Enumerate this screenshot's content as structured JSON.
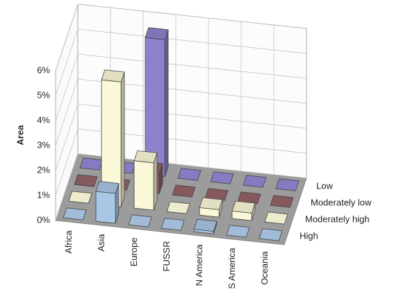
{
  "chart_data": {
    "type": "bar3d",
    "y_label": "Area",
    "categories": [
      "Africa",
      "Asia",
      "Europe",
      "FUSSR",
      "N America",
      "S America",
      "Oceania"
    ],
    "series": [
      {
        "name": "High",
        "color": "#a9c6e4",
        "values": [
          0,
          1.2,
          0,
          0,
          0.1,
          0,
          0
        ]
      },
      {
        "name": "Moderately high",
        "color": "#fbf8d8",
        "values": [
          0,
          5.0,
          1.9,
          0,
          0.3,
          0.3,
          0
        ]
      },
      {
        "name": "Moderately low",
        "color": "#8c5e62",
        "values": [
          0,
          0,
          0.8,
          0,
          0,
          0,
          0
        ]
      },
      {
        "name": "Low",
        "color": "#8f80cc",
        "values": [
          0,
          0,
          5.5,
          0,
          0,
          0,
          0
        ]
      }
    ],
    "ylim": [
      0,
      6
    ],
    "yticks": [
      {
        "value": 0,
        "label": "0%"
      },
      {
        "value": 1,
        "label": "1%"
      },
      {
        "value": 2,
        "label": "2%"
      },
      {
        "value": 3,
        "label": "3%"
      },
      {
        "value": 4,
        "label": "4%"
      },
      {
        "value": 5,
        "label": "5%"
      },
      {
        "value": 6,
        "label": "6%"
      }
    ],
    "grid": true
  }
}
